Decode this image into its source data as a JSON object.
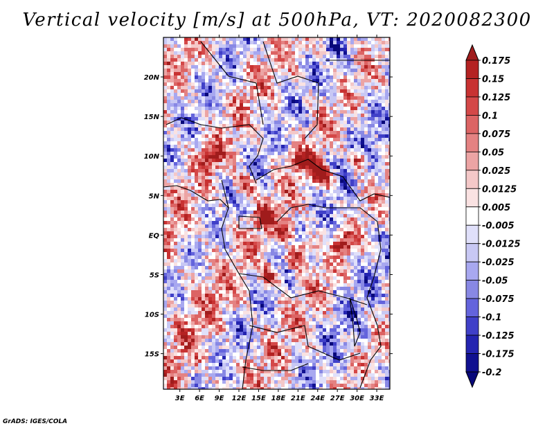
{
  "chart_data": {
    "type": "heatmap",
    "title": "Vertical velocity [m/s] at 500hPa, VT: 2020082300",
    "variable": "Vertical velocity",
    "units": "m/s",
    "level": "500hPa",
    "valid_time": "2020082300",
    "x_ticks": [
      "3E",
      "6E",
      "9E",
      "12E",
      "15E",
      "18E",
      "21E",
      "24E",
      "27E",
      "30E",
      "33E"
    ],
    "x_tick_values": [
      3,
      6,
      9,
      12,
      15,
      18,
      21,
      24,
      27,
      30,
      33
    ],
    "y_ticks": [
      "20N",
      "15N",
      "10N",
      "5N",
      "EQ",
      "5S",
      "10S",
      "15S"
    ],
    "y_tick_values": [
      20,
      15,
      10,
      5,
      0,
      -5,
      -10,
      -15
    ],
    "xlim": [
      0.5,
      35
    ],
    "ylim": [
      -19.5,
      25
    ],
    "colorbar": {
      "levels": [
        "0.175",
        "0.15",
        "0.125",
        "0.1",
        "0.075",
        "0.05",
        "0.025",
        "0.0125",
        "0.005",
        "-0.005",
        "-0.0125",
        "-0.025",
        "-0.05",
        "-0.075",
        "-0.1",
        "-0.125",
        "-0.175",
        "-0.2"
      ],
      "colors": [
        "#a01c1c",
        "#b42222",
        "#c83232",
        "#d44848",
        "#dc6464",
        "#e48282",
        "#eca4a4",
        "#f4c8c8",
        "#fae2e2",
        "#ffffff",
        "#e0e0fa",
        "#c8c8f4",
        "#a8a8f0",
        "#8888e4",
        "#6464dc",
        "#4040c8",
        "#2424b0",
        "#101090",
        "#08087a"
      ]
    }
  },
  "credit": "GrADS: IGES/COLA"
}
